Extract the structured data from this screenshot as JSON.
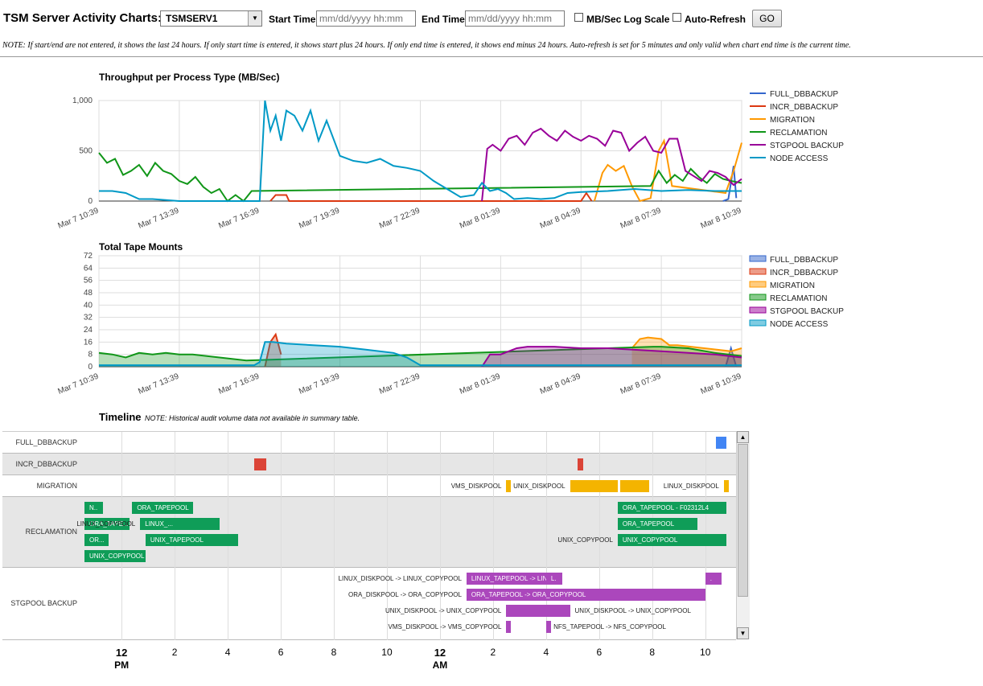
{
  "header": {
    "title": "TSM Server Activity Charts:",
    "server_select": "TSMSERV1",
    "start_label": "Start Time:",
    "start_placeholder": "mm/dd/yyyy hh:mm",
    "end_label": "End Time:",
    "end_placeholder": "mm/dd/yyyy hh:mm",
    "log_scale_label": "MB/Sec Log Scale",
    "auto_refresh_label": "Auto-Refresh",
    "go_label": "GO"
  },
  "note": "NOTE: If start/end are not entered, it shows the last 24 hours. If only start time is entered, it shows start plus 24 hours. If only end time is entered, it shows end minus 24 hours. Auto-refresh is set for 5 minutes and only valid when chart end time is the current time.",
  "colors": {
    "FULL_DBBACKUP": "#3366cc",
    "INCR_DBBACKUP": "#dc3912",
    "MIGRATION": "#ff9900",
    "RECLAMATION": "#109618",
    "STGPOOL BACKUP": "#990099",
    "NODE ACCESS": "#0099c6"
  },
  "chart_data": [
    {
      "type": "line",
      "title": "Throughput per Process Type (MB/Sec)",
      "x_tick_labels": [
        "Mar 7 10:39",
        "Mar 7 13:39",
        "Mar 7 16:39",
        "Mar 7 19:39",
        "Mar 7 22:39",
        "Mar 8 01:39",
        "Mar 8 04:39",
        "Mar 8 07:39",
        "Mar 8 10:39"
      ],
      "y_tick_labels": [
        "0",
        "500",
        "1,000"
      ],
      "ylim": [
        0,
        1000
      ],
      "legend_position": "right",
      "x_unit": "hours since start of window (0-24)",
      "series": [
        {
          "name": "FULL_DBBACKUP",
          "x": [
            23.3,
            23.5,
            23.7,
            23.8
          ],
          "values": [
            0,
            20,
            350,
            30
          ]
        },
        {
          "name": "INCR_DBBACKUP",
          "x": [
            6.4,
            6.6,
            7.0,
            7.1,
            18.0,
            18.2,
            18.4
          ],
          "values": [
            0,
            60,
            60,
            0,
            0,
            80,
            0
          ]
        },
        {
          "name": "MIGRATION",
          "x": [
            18.5,
            18.8,
            19.0,
            19.3,
            19.6,
            19.9,
            20.2,
            20.6,
            20.9,
            21.1,
            21.4,
            23.4,
            23.7,
            24.0
          ],
          "values": [
            0,
            280,
            360,
            300,
            350,
            150,
            0,
            30,
            500,
            600,
            150,
            80,
            300,
            580
          ]
        },
        {
          "name": "RECLAMATION",
          "x": [
            0,
            0.3,
            0.6,
            0.9,
            1.2,
            1.5,
            1.8,
            2.1,
            2.4,
            2.7,
            3.0,
            3.3,
            3.6,
            3.9,
            4.2,
            4.5,
            4.8,
            5.1,
            5.4,
            5.7,
            20.6,
            20.9,
            21.2,
            21.5,
            21.8,
            22.1,
            22.4,
            22.7,
            23.0,
            23.3,
            23.6,
            24.0
          ],
          "values": [
            480,
            380,
            420,
            260,
            300,
            360,
            250,
            380,
            300,
            270,
            200,
            170,
            240,
            140,
            80,
            120,
            0,
            60,
            0,
            100,
            150,
            300,
            180,
            260,
            200,
            320,
            240,
            180,
            270,
            220,
            200,
            180
          ]
        },
        {
          "name": "STGPOOL BACKUP",
          "x": [
            14.3,
            14.5,
            14.7,
            15.0,
            15.3,
            15.6,
            15.9,
            16.2,
            16.5,
            16.8,
            17.1,
            17.4,
            17.7,
            18.0,
            18.3,
            18.6,
            18.9,
            19.2,
            19.5,
            19.8,
            20.1,
            20.4,
            20.7,
            21.0,
            21.3,
            21.6,
            21.9,
            22.2,
            22.5,
            22.8,
            23.1,
            23.4,
            23.7,
            24.0
          ],
          "values": [
            0,
            520,
            560,
            500,
            620,
            650,
            560,
            680,
            720,
            650,
            600,
            700,
            640,
            600,
            650,
            620,
            550,
            700,
            680,
            500,
            580,
            640,
            500,
            480,
            620,
            620,
            300,
            250,
            200,
            300,
            280,
            240,
            160,
            220
          ]
        },
        {
          "name": "NODE ACCESS",
          "x": [
            0,
            0.5,
            1.0,
            1.5,
            2.0,
            3.0,
            4.0,
            5.0,
            6.0,
            6.2,
            6.4,
            6.6,
            6.8,
            7.0,
            7.3,
            7.6,
            7.9,
            8.2,
            8.5,
            9.0,
            9.5,
            10.0,
            10.5,
            11.0,
            11.5,
            12.0,
            12.5,
            13.0,
            13.5,
            14.0,
            14.3,
            14.6,
            14.9,
            15.2,
            15.5,
            16.0,
            16.5,
            17.0,
            17.5,
            18.0,
            19.0,
            20.0,
            21.0,
            22.0,
            23.0,
            24.0
          ],
          "values": [
            100,
            100,
            80,
            20,
            20,
            0,
            0,
            0,
            0,
            1000,
            700,
            850,
            600,
            900,
            850,
            700,
            900,
            600,
            800,
            450,
            400,
            380,
            420,
            350,
            330,
            300,
            200,
            120,
            40,
            60,
            180,
            100,
            120,
            80,
            20,
            30,
            20,
            30,
            80,
            90,
            100,
            120,
            100,
            110,
            100,
            100
          ]
        }
      ]
    },
    {
      "type": "area",
      "title": "Total Tape Mounts",
      "x_tick_labels": [
        "Mar 7 10:39",
        "Mar 7 13:39",
        "Mar 7 16:39",
        "Mar 7 19:39",
        "Mar 7 22:39",
        "Mar 8 01:39",
        "Mar 8 04:39",
        "Mar 8 07:39",
        "Mar 8 10:39"
      ],
      "y_tick_labels": [
        "0",
        "8",
        "16",
        "24",
        "32",
        "40",
        "48",
        "56",
        "64",
        "72"
      ],
      "ylim": [
        0,
        72
      ],
      "legend_position": "right",
      "x_unit": "hours since start of window (0-24)",
      "series": [
        {
          "name": "FULL_DBBACKUP",
          "x": [
            23.4,
            23.6,
            23.8
          ],
          "values": [
            0,
            12,
            0
          ]
        },
        {
          "name": "INCR_DBBACKUP",
          "x": [
            6.2,
            6.4,
            6.6,
            6.8
          ],
          "values": [
            0,
            16,
            21,
            8
          ]
        },
        {
          "name": "MIGRATION",
          "x": [
            19.9,
            20.2,
            20.5,
            21.0,
            21.3,
            21.6,
            23.6,
            24.0
          ],
          "values": [
            12,
            18,
            19,
            18,
            14,
            14,
            10,
            12
          ]
        },
        {
          "name": "RECLAMATION",
          "x": [
            0,
            0.5,
            1.0,
            1.5,
            2.0,
            2.5,
            3.0,
            3.5,
            4.0,
            4.5,
            5.0,
            5.5,
            20.7,
            21.0,
            22.0,
            23.0,
            24.0
          ],
          "values": [
            9,
            8,
            6,
            9,
            8,
            9,
            8,
            8,
            7,
            6,
            5,
            4,
            13,
            13,
            12,
            9,
            7
          ]
        },
        {
          "name": "STGPOOL BACKUP",
          "x": [
            14.3,
            14.6,
            15.0,
            15.3,
            15.6,
            16.0,
            17.0,
            18.0,
            19.0,
            20.0,
            21.0,
            22.0,
            23.0,
            24.0
          ],
          "values": [
            0,
            8,
            8,
            10,
            12,
            13,
            13,
            12,
            12,
            11,
            10,
            9,
            8,
            6
          ]
        },
        {
          "name": "NODE ACCESS",
          "x": [
            0,
            1,
            2,
            3,
            4,
            5,
            5.8,
            6.0,
            6.2,
            6.5,
            7.0,
            8.0,
            9.0,
            10.0,
            11.0,
            11.5,
            12.0,
            13.0,
            14.0,
            15.0,
            16.0,
            17.0,
            18.0,
            19.0,
            20.0,
            21.0,
            22.0,
            23.0,
            24.0
          ],
          "values": [
            1,
            1,
            1,
            1,
            1,
            1,
            1,
            3,
            16,
            16,
            15,
            14,
            13,
            11,
            9,
            6,
            1,
            1,
            1,
            1,
            1,
            1,
            1,
            1,
            1,
            1,
            1,
            1,
            1
          ]
        }
      ]
    }
  ],
  "timeline": {
    "title": "Timeline",
    "note": "NOTE: Historical audit volume data not available in summary table.",
    "axis_labels": [
      "12",
      "2",
      "4",
      "6",
      "8",
      "10",
      "12",
      "2",
      "4",
      "6",
      "8",
      "10"
    ],
    "axis_sublabels": [
      "PM",
      "AM"
    ],
    "rows": [
      {
        "name": "FULL_DBBACKUP",
        "bars": [
          {
            "s": 23.8,
            "e": 24.2,
            "label": ""
          }
        ]
      },
      {
        "name": "INCR_DBBACKUP",
        "bars": [
          {
            "s": 6.4,
            "e": 6.85,
            "label": ""
          },
          {
            "s": 18.6,
            "e": 18.8,
            "label": ""
          }
        ]
      },
      {
        "name": "MIGRATION",
        "bars": [
          {
            "s": 15.9,
            "e": 16.0,
            "label": "",
            "outside": "VMS_DISKPOOL"
          },
          {
            "s": 18.3,
            "e": 20.1,
            "label": "",
            "outside": "UNIX_DISKPOOL"
          },
          {
            "s": 20.2,
            "e": 21.3,
            "label": ""
          },
          {
            "s": 24.1,
            "e": 24.3,
            "label": "",
            "outside": "LINUX_DISKPOOL"
          }
        ]
      },
      {
        "name": "RECLAMATION",
        "bars": [
          {
            "s": 0.0,
            "e": 0.7,
            "label": "N..",
            "lane": 0
          },
          {
            "s": 1.8,
            "e": 4.1,
            "label": "ORA_TAPEPOOL",
            "lane": 0
          },
          {
            "s": 0.0,
            "e": 1.7,
            "label": "ORA_TAPE...",
            "lane": 1
          },
          {
            "s": 2.1,
            "e": 5.1,
            "label": "LINUX_...",
            "lane": 1,
            "outside": "LINUX_COPYPOOL"
          },
          {
            "s": 0.0,
            "e": 0.9,
            "label": "OR...",
            "lane": 2
          },
          {
            "s": 2.3,
            "e": 5.8,
            "label": "UNIX_TAPEPOOL",
            "lane": 2
          },
          {
            "s": 0.0,
            "e": 2.3,
            "label": "UNIX_COPYPOOL",
            "lane": 3
          },
          {
            "s": 20.1,
            "e": 24.2,
            "label": "ORA_TAPEPOOL - F02312L4",
            "lane": 0
          },
          {
            "s": 20.1,
            "e": 23.1,
            "label": "ORA_TAPEPOOL",
            "lane": 1
          },
          {
            "s": 20.1,
            "e": 24.2,
            "label": "UNIX_COPYPOOL",
            "lane": 2,
            "outside": "UNIX_COPYPOOL"
          }
        ]
      },
      {
        "name": "STGPOOL BACKUP",
        "bars": [
          {
            "s": 14.4,
            "e": 17.4,
            "label": "LINUX_TAPEPOOL -> LINUX_...",
            "lane": 0,
            "outside": "LINUX_DISKPOOL -> LINUX_COPYPOOL"
          },
          {
            "s": 17.4,
            "e": 18.0,
            "label": "L.",
            "lane": 0
          },
          {
            "s": 23.4,
            "e": 24.0,
            "label": ".",
            "lane": 0
          },
          {
            "s": 14.4,
            "e": 23.4,
            "label": "ORA_TAPEPOOL -> ORA_COPYPOOL",
            "lane": 1,
            "outside": "ORA_DISKPOOL -> ORA_COPYPOOL"
          },
          {
            "s": 15.9,
            "e": 18.3,
            "label": "",
            "lane": 2,
            "outside": "UNIX_DISKPOOL -> UNIX_COPYPOOL",
            "after": "UNIX_DISKPOOL -> UNIX_COPYPOOL"
          },
          {
            "s": 15.9,
            "e": 16.05,
            "label": "",
            "lane": 3,
            "outside": "VMS_DISKPOOL -> VMS_COPYPOOL"
          },
          {
            "s": 17.4,
            "e": 17.5,
            "label": "",
            "lane": 3,
            "after": "NFS_TAPEPOOL -> NFS_COPYPOOL"
          }
        ]
      }
    ]
  }
}
